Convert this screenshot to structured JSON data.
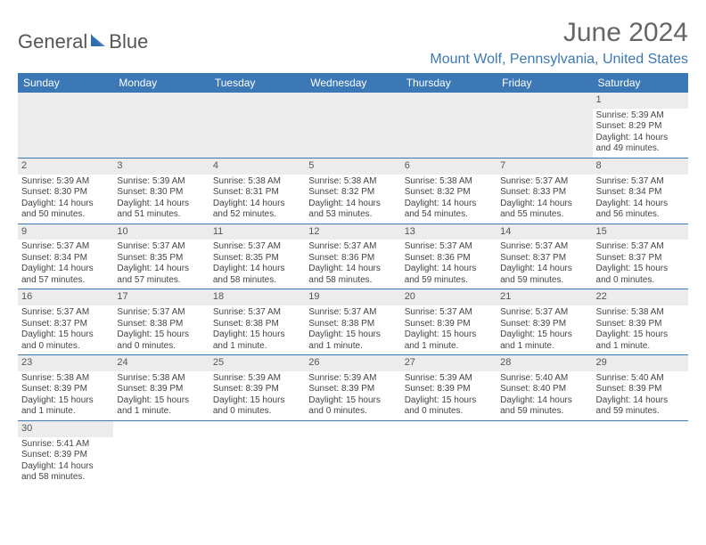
{
  "brand": {
    "part1": "General",
    "part2": "Blue",
    "sail_color": "#2f6fb0"
  },
  "title": "June 2024",
  "location": "Mount Wolf, Pennsylvania, United States",
  "colors": {
    "header_bg": "#3b78b5",
    "header_text": "#ffffff",
    "daynum_bg": "#ececec",
    "border": "#3b78b5",
    "location_text": "#3b78b5"
  },
  "weekdays": [
    "Sunday",
    "Monday",
    "Tuesday",
    "Wednesday",
    "Thursday",
    "Friday",
    "Saturday"
  ],
  "weeks": [
    [
      null,
      null,
      null,
      null,
      null,
      null,
      {
        "n": "1",
        "sr": "Sunrise: 5:39 AM",
        "ss": "Sunset: 8:29 PM",
        "d1": "Daylight: 14 hours",
        "d2": "and 49 minutes."
      }
    ],
    [
      {
        "n": "2",
        "sr": "Sunrise: 5:39 AM",
        "ss": "Sunset: 8:30 PM",
        "d1": "Daylight: 14 hours",
        "d2": "and 50 minutes."
      },
      {
        "n": "3",
        "sr": "Sunrise: 5:39 AM",
        "ss": "Sunset: 8:30 PM",
        "d1": "Daylight: 14 hours",
        "d2": "and 51 minutes."
      },
      {
        "n": "4",
        "sr": "Sunrise: 5:38 AM",
        "ss": "Sunset: 8:31 PM",
        "d1": "Daylight: 14 hours",
        "d2": "and 52 minutes."
      },
      {
        "n": "5",
        "sr": "Sunrise: 5:38 AM",
        "ss": "Sunset: 8:32 PM",
        "d1": "Daylight: 14 hours",
        "d2": "and 53 minutes."
      },
      {
        "n": "6",
        "sr": "Sunrise: 5:38 AM",
        "ss": "Sunset: 8:32 PM",
        "d1": "Daylight: 14 hours",
        "d2": "and 54 minutes."
      },
      {
        "n": "7",
        "sr": "Sunrise: 5:37 AM",
        "ss": "Sunset: 8:33 PM",
        "d1": "Daylight: 14 hours",
        "d2": "and 55 minutes."
      },
      {
        "n": "8",
        "sr": "Sunrise: 5:37 AM",
        "ss": "Sunset: 8:34 PM",
        "d1": "Daylight: 14 hours",
        "d2": "and 56 minutes."
      }
    ],
    [
      {
        "n": "9",
        "sr": "Sunrise: 5:37 AM",
        "ss": "Sunset: 8:34 PM",
        "d1": "Daylight: 14 hours",
        "d2": "and 57 minutes."
      },
      {
        "n": "10",
        "sr": "Sunrise: 5:37 AM",
        "ss": "Sunset: 8:35 PM",
        "d1": "Daylight: 14 hours",
        "d2": "and 57 minutes."
      },
      {
        "n": "11",
        "sr": "Sunrise: 5:37 AM",
        "ss": "Sunset: 8:35 PM",
        "d1": "Daylight: 14 hours",
        "d2": "and 58 minutes."
      },
      {
        "n": "12",
        "sr": "Sunrise: 5:37 AM",
        "ss": "Sunset: 8:36 PM",
        "d1": "Daylight: 14 hours",
        "d2": "and 58 minutes."
      },
      {
        "n": "13",
        "sr": "Sunrise: 5:37 AM",
        "ss": "Sunset: 8:36 PM",
        "d1": "Daylight: 14 hours",
        "d2": "and 59 minutes."
      },
      {
        "n": "14",
        "sr": "Sunrise: 5:37 AM",
        "ss": "Sunset: 8:37 PM",
        "d1": "Daylight: 14 hours",
        "d2": "and 59 minutes."
      },
      {
        "n": "15",
        "sr": "Sunrise: 5:37 AM",
        "ss": "Sunset: 8:37 PM",
        "d1": "Daylight: 15 hours",
        "d2": "and 0 minutes."
      }
    ],
    [
      {
        "n": "16",
        "sr": "Sunrise: 5:37 AM",
        "ss": "Sunset: 8:37 PM",
        "d1": "Daylight: 15 hours",
        "d2": "and 0 minutes."
      },
      {
        "n": "17",
        "sr": "Sunrise: 5:37 AM",
        "ss": "Sunset: 8:38 PM",
        "d1": "Daylight: 15 hours",
        "d2": "and 0 minutes."
      },
      {
        "n": "18",
        "sr": "Sunrise: 5:37 AM",
        "ss": "Sunset: 8:38 PM",
        "d1": "Daylight: 15 hours",
        "d2": "and 1 minute."
      },
      {
        "n": "19",
        "sr": "Sunrise: 5:37 AM",
        "ss": "Sunset: 8:38 PM",
        "d1": "Daylight: 15 hours",
        "d2": "and 1 minute."
      },
      {
        "n": "20",
        "sr": "Sunrise: 5:37 AM",
        "ss": "Sunset: 8:39 PM",
        "d1": "Daylight: 15 hours",
        "d2": "and 1 minute."
      },
      {
        "n": "21",
        "sr": "Sunrise: 5:37 AM",
        "ss": "Sunset: 8:39 PM",
        "d1": "Daylight: 15 hours",
        "d2": "and 1 minute."
      },
      {
        "n": "22",
        "sr": "Sunrise: 5:38 AM",
        "ss": "Sunset: 8:39 PM",
        "d1": "Daylight: 15 hours",
        "d2": "and 1 minute."
      }
    ],
    [
      {
        "n": "23",
        "sr": "Sunrise: 5:38 AM",
        "ss": "Sunset: 8:39 PM",
        "d1": "Daylight: 15 hours",
        "d2": "and 1 minute."
      },
      {
        "n": "24",
        "sr": "Sunrise: 5:38 AM",
        "ss": "Sunset: 8:39 PM",
        "d1": "Daylight: 15 hours",
        "d2": "and 1 minute."
      },
      {
        "n": "25",
        "sr": "Sunrise: 5:39 AM",
        "ss": "Sunset: 8:39 PM",
        "d1": "Daylight: 15 hours",
        "d2": "and 0 minutes."
      },
      {
        "n": "26",
        "sr": "Sunrise: 5:39 AM",
        "ss": "Sunset: 8:39 PM",
        "d1": "Daylight: 15 hours",
        "d2": "and 0 minutes."
      },
      {
        "n": "27",
        "sr": "Sunrise: 5:39 AM",
        "ss": "Sunset: 8:39 PM",
        "d1": "Daylight: 15 hours",
        "d2": "and 0 minutes."
      },
      {
        "n": "28",
        "sr": "Sunrise: 5:40 AM",
        "ss": "Sunset: 8:40 PM",
        "d1": "Daylight: 14 hours",
        "d2": "and 59 minutes."
      },
      {
        "n": "29",
        "sr": "Sunrise: 5:40 AM",
        "ss": "Sunset: 8:39 PM",
        "d1": "Daylight: 14 hours",
        "d2": "and 59 minutes."
      }
    ],
    [
      {
        "n": "30",
        "sr": "Sunrise: 5:41 AM",
        "ss": "Sunset: 8:39 PM",
        "d1": "Daylight: 14 hours",
        "d2": "and 58 minutes."
      },
      null,
      null,
      null,
      null,
      null,
      null
    ]
  ]
}
